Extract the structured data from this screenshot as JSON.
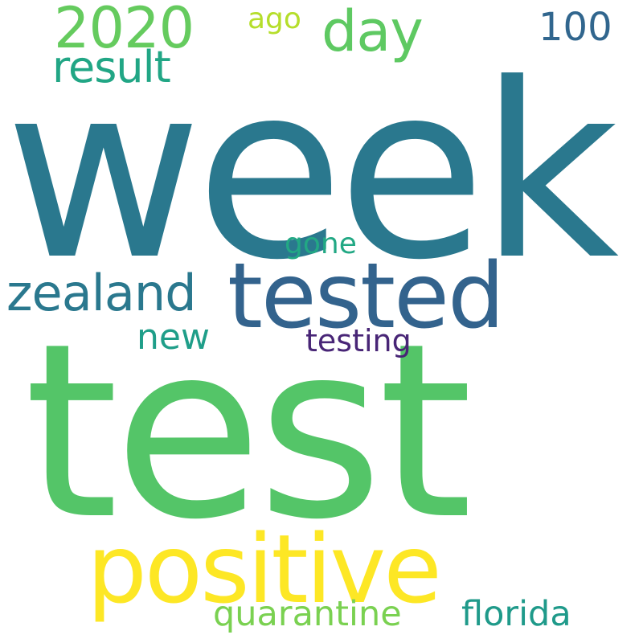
{
  "words": {
    "week": {
      "text": "week",
      "color": "#2A788E"
    },
    "test": {
      "text": "test",
      "color": "#54C568"
    },
    "positive": {
      "text": "positive",
      "color": "#FDE725"
    },
    "tested": {
      "text": "tested",
      "color": "#33638D"
    },
    "zealand": {
      "text": "zealand",
      "color": "#2A788E"
    },
    "year_2020": {
      "text": "2020",
      "color": "#65CB5E"
    },
    "day": {
      "text": "day",
      "color": "#5EC962"
    },
    "result": {
      "text": "result",
      "color": "#21A685"
    },
    "hundred": {
      "text": "100",
      "color": "#31668E"
    },
    "ago": {
      "text": "ago",
      "color": "#B5DE2B"
    },
    "gone": {
      "text": "gone",
      "color": "#22A884"
    },
    "new": {
      "text": "new",
      "color": "#1F9E89"
    },
    "testing": {
      "text": "testing",
      "color": "#482576"
    },
    "quarantine": {
      "text": "quarantine",
      "color": "#7AD151"
    },
    "florida": {
      "text": "florida",
      "color": "#1F9A8A"
    }
  }
}
